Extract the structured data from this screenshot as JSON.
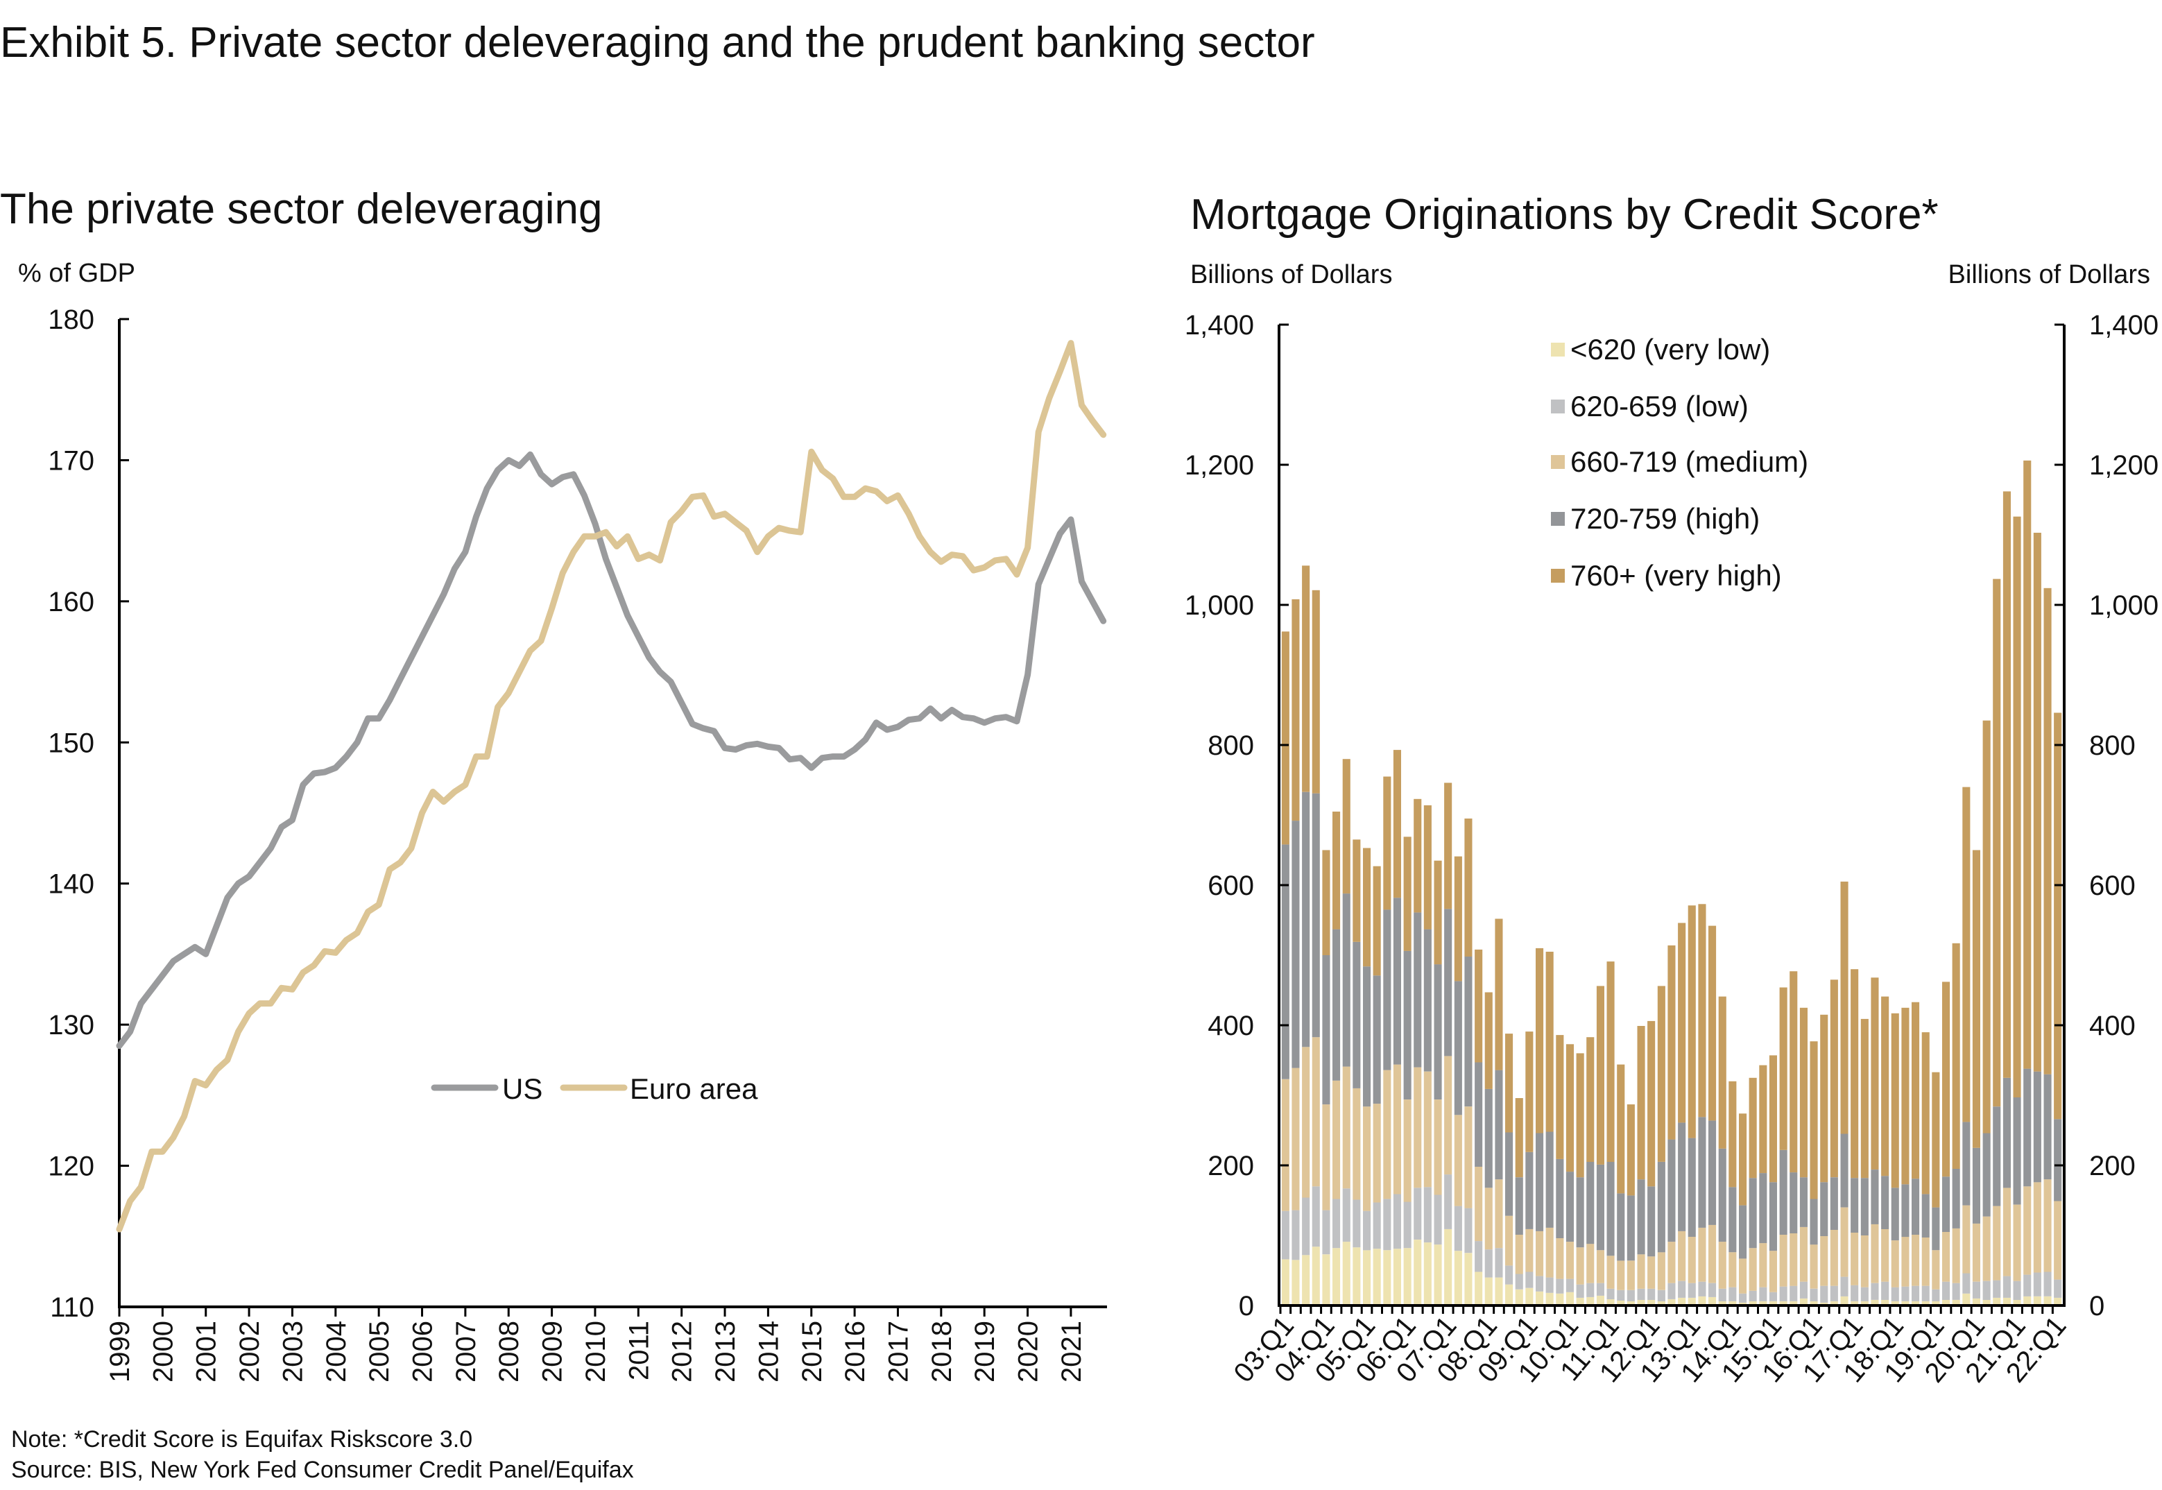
{
  "title": "Exhibit 5. Private sector deleveraging and the prudent banking sector",
  "note": "Note: *Credit Score is Equifax Riskscore 3.0",
  "source": "Source: BIS, New York Fed Consumer Credit Panel/Equifax",
  "chart_data": [
    {
      "type": "line",
      "title": "The private sector deleveraging",
      "ylabel": "% of GDP",
      "ylim": [
        110,
        180
      ],
      "yticks": [
        "110",
        "120",
        "130",
        "140",
        "150",
        "160",
        "170",
        "180"
      ],
      "xtick_labels": [
        "1999",
        "2000",
        "2001",
        "2002",
        "2003",
        "2004",
        "2005",
        "2006",
        "2007",
        "2008",
        "2009",
        "2010",
        "2011",
        "2012",
        "2013",
        "2014",
        "2015",
        "2016",
        "2017",
        "2018",
        "2019",
        "2020",
        "2021"
      ],
      "frequency": "quarterly",
      "x": [
        "1999Q1",
        "1999Q2",
        "1999Q3",
        "1999Q4",
        "2000Q1",
        "2000Q2",
        "2000Q3",
        "2000Q4",
        "2001Q1",
        "2001Q2",
        "2001Q3",
        "2001Q4",
        "2002Q1",
        "2002Q2",
        "2002Q3",
        "2002Q4",
        "2003Q1",
        "2003Q2",
        "2003Q3",
        "2003Q4",
        "2004Q1",
        "2004Q2",
        "2004Q3",
        "2004Q4",
        "2005Q1",
        "2005Q2",
        "2005Q3",
        "2005Q4",
        "2006Q1",
        "2006Q2",
        "2006Q3",
        "2006Q4",
        "2007Q1",
        "2007Q2",
        "2007Q3",
        "2007Q4",
        "2008Q1",
        "2008Q2",
        "2008Q3",
        "2008Q4",
        "2009Q1",
        "2009Q2",
        "2009Q3",
        "2009Q4",
        "2010Q1",
        "2010Q2",
        "2010Q3",
        "2010Q4",
        "2011Q1",
        "2011Q2",
        "2011Q3",
        "2011Q4",
        "2012Q1",
        "2012Q2",
        "2012Q3",
        "2012Q4",
        "2013Q1",
        "2013Q2",
        "2013Q3",
        "2013Q4",
        "2014Q1",
        "2014Q2",
        "2014Q3",
        "2014Q4",
        "2015Q1",
        "2015Q2",
        "2015Q3",
        "2015Q4",
        "2016Q1",
        "2016Q2",
        "2016Q3",
        "2016Q4",
        "2017Q1",
        "2017Q2",
        "2017Q3",
        "2017Q4",
        "2018Q1",
        "2018Q2",
        "2018Q3",
        "2018Q4",
        "2019Q1",
        "2019Q2",
        "2019Q3",
        "2019Q4",
        "2020Q1",
        "2020Q2",
        "2020Q3",
        "2020Q4",
        "2021Q1",
        "2021Q2",
        "2021Q3",
        "2021Q4"
      ],
      "legend_placement": "center",
      "grid": false,
      "series": [
        {
          "name": "US",
          "color": "#9a9b9d",
          "values": [
            128.5,
            129.5,
            131.5,
            132.5,
            133.5,
            134.5,
            135,
            135.5,
            135,
            137,
            139,
            140,
            140.5,
            141.5,
            142.5,
            144,
            144.5,
            147,
            147.8,
            147.9,
            148.2,
            149,
            150,
            151.7,
            151.7,
            153,
            154.5,
            156,
            157.5,
            159,
            160.5,
            162.3,
            163.5,
            166,
            168,
            169.3,
            170,
            169.6,
            170.4,
            169,
            168.3,
            168.8,
            169,
            167.5,
            165.5,
            163,
            161,
            159,
            157.5,
            156,
            155,
            154.3,
            152.8,
            151.3,
            151,
            150.8,
            149.6,
            149.5,
            149.8,
            149.9,
            149.7,
            149.6,
            148.8,
            148.9,
            148.2,
            148.9,
            149,
            149,
            149.5,
            150.2,
            151.4,
            150.9,
            151.1,
            151.6,
            151.7,
            152.4,
            151.7,
            152.3,
            151.8,
            151.7,
            151.4,
            151.7,
            151.8,
            151.5,
            154.8,
            161.2,
            163,
            164.8,
            165.8,
            161.4,
            160,
            158.6
          ]
        },
        {
          "name": "Euro area",
          "color": "#dcc595",
          "values": [
            115.5,
            117.5,
            118.5,
            121,
            121,
            122,
            123.5,
            126,
            125.7,
            126.8,
            127.5,
            129.5,
            130.8,
            131.5,
            131.5,
            132.6,
            132.5,
            133.7,
            134.2,
            135.2,
            135.1,
            136,
            136.5,
            138,
            138.5,
            141,
            141.5,
            142.5,
            145,
            146.5,
            145.8,
            146.5,
            147,
            149,
            149,
            152.5,
            153.5,
            155,
            156.5,
            157.2,
            159.5,
            162,
            163.5,
            164.6,
            164.6,
            164.9,
            163.9,
            164.6,
            163,
            163.3,
            162.9,
            165.6,
            166.4,
            167.4,
            167.5,
            166,
            166.2,
            165.6,
            165,
            163.5,
            164.6,
            165.2,
            165,
            164.9,
            170.6,
            169.3,
            168.7,
            167.4,
            167.4,
            168,
            167.8,
            167.1,
            167.5,
            166.2,
            164.6,
            163.5,
            162.8,
            163.3,
            163.2,
            162.2,
            162.4,
            162.9,
            163,
            161.9,
            163.8,
            172,
            174.4,
            176.3,
            178.3,
            173.9,
            172.8,
            171.8
          ]
        }
      ]
    },
    {
      "type": "bar",
      "stacked": true,
      "title": "Mortgage Originations by Credit Score*",
      "ylabel": "Billions of Dollars",
      "ylabel_right": "Billions of Dollars",
      "ylim": [
        0,
        1400
      ],
      "yticks": [
        "0",
        "200",
        "400",
        "600",
        "800",
        "1,000",
        "1,200",
        "1,400"
      ],
      "xtick_labels": [
        "03:Q1",
        "04:Q1",
        "05:Q1",
        "06:Q1",
        "07:Q1",
        "08:Q1",
        "09:Q1",
        "10:Q1",
        "11:Q1",
        "12:Q1",
        "13:Q1",
        "14:Q1",
        "15:Q1",
        "16:Q1",
        "17:Q1",
        "18:Q1",
        "19:Q1",
        "20:Q1",
        "21:Q1",
        "22:Q1"
      ],
      "legend_placement": "top-right",
      "categories": [
        "03:Q1",
        "03:Q2",
        "03:Q3",
        "03:Q4",
        "04:Q1",
        "04:Q2",
        "04:Q3",
        "04:Q4",
        "05:Q1",
        "05:Q2",
        "05:Q3",
        "05:Q4",
        "06:Q1",
        "06:Q2",
        "06:Q3",
        "06:Q4",
        "07:Q1",
        "07:Q2",
        "07:Q3",
        "07:Q4",
        "08:Q1",
        "08:Q2",
        "08:Q3",
        "08:Q4",
        "09:Q1",
        "09:Q2",
        "09:Q3",
        "09:Q4",
        "10:Q1",
        "10:Q2",
        "10:Q3",
        "10:Q4",
        "11:Q1",
        "11:Q2",
        "11:Q3",
        "11:Q4",
        "12:Q1",
        "12:Q2",
        "12:Q3",
        "12:Q4",
        "13:Q1",
        "13:Q2",
        "13:Q3",
        "13:Q4",
        "14:Q1",
        "14:Q2",
        "14:Q3",
        "14:Q4",
        "15:Q1",
        "15:Q2",
        "15:Q3",
        "15:Q4",
        "16:Q1",
        "16:Q2",
        "16:Q3",
        "16:Q4",
        "17:Q1",
        "17:Q2",
        "17:Q3",
        "17:Q4",
        "18:Q1",
        "18:Q2",
        "18:Q3",
        "18:Q4",
        "19:Q1",
        "19:Q2",
        "19:Q3",
        "19:Q4",
        "20:Q1",
        "20:Q2",
        "20:Q3",
        "20:Q4",
        "21:Q1",
        "21:Q2",
        "21:Q3",
        "21:Q4",
        "22:Q1"
      ],
      "series": [
        {
          "name": "<620 (very low)",
          "color": "#eee3b0",
          "values": [
            66,
            65,
            72,
            84,
            73,
            82,
            91,
            83,
            79,
            81,
            79,
            81,
            82,
            94,
            90,
            87,
            109,
            78,
            75,
            48,
            40,
            40,
            30,
            23,
            25,
            20,
            18,
            17,
            19,
            11,
            12,
            14,
            9,
            7,
            6,
            8,
            8,
            6,
            9,
            11,
            11,
            13,
            12,
            6,
            6,
            4,
            6,
            6,
            6,
            6,
            6,
            10,
            6,
            4,
            6,
            13,
            6,
            6,
            8,
            8,
            6,
            6,
            6,
            6,
            6,
            8,
            8,
            17,
            10,
            8,
            11,
            11,
            8,
            13,
            13,
            13,
            11
          ]
        },
        {
          "name": "620-659 (low)",
          "color": "#c0c1c3",
          "values": [
            69,
            71,
            82,
            86,
            63,
            70,
            76,
            68,
            56,
            66,
            73,
            78,
            66,
            74,
            79,
            71,
            78,
            64,
            64,
            44,
            40,
            42,
            27,
            22,
            23,
            22,
            22,
            21,
            19,
            19,
            20,
            18,
            15,
            15,
            16,
            16,
            16,
            16,
            23,
            24,
            21,
            21,
            20,
            18,
            20,
            13,
            15,
            20,
            13,
            21,
            22,
            24,
            18,
            24,
            22,
            28,
            23,
            20,
            24,
            26,
            20,
            21,
            22,
            22,
            17,
            26,
            24,
            29,
            24,
            27,
            25,
            31,
            27,
            31,
            34,
            35,
            26
          ]
        },
        {
          "name": "660-719 (medium)",
          "color": "#dfc598",
          "values": [
            188,
            203,
            215,
            213,
            151,
            169,
            174,
            159,
            149,
            141,
            184,
            185,
            146,
            172,
            165,
            136,
            169,
            130,
            145,
            106,
            88,
            98,
            71,
            56,
            61,
            64,
            71,
            58,
            53,
            53,
            56,
            47,
            47,
            42,
            42,
            49,
            46,
            54,
            59,
            71,
            66,
            77,
            83,
            67,
            50,
            50,
            61,
            63,
            59,
            74,
            75,
            78,
            63,
            71,
            80,
            99,
            75,
            74,
            84,
            75,
            67,
            71,
            73,
            69,
            56,
            71,
            78,
            97,
            83,
            92,
            106,
            126,
            109,
            126,
            129,
            132,
            112
          ]
        },
        {
          "name": "720-759 (high)",
          "color": "#939598",
          "values": [
            335,
            353,
            364,
            348,
            213,
            216,
            247,
            209,
            200,
            183,
            229,
            238,
            212,
            221,
            203,
            193,
            210,
            191,
            214,
            149,
            141,
            156,
            119,
            82,
            110,
            140,
            137,
            113,
            100,
            100,
            117,
            122,
            134,
            96,
            93,
            107,
            100,
            129,
            146,
            155,
            141,
            158,
            149,
            133,
            93,
            76,
            100,
            100,
            98,
            121,
            87,
            71,
            65,
            77,
            75,
            105,
            78,
            82,
            78,
            76,
            75,
            75,
            80,
            62,
            61,
            79,
            85,
            119,
            108,
            119,
            142,
            157,
            153,
            168,
            158,
            150,
            117
          ]
        },
        {
          "name": "760+ (very high)",
          "color": "#c59d5f",
          "values": [
            304,
            316,
            323,
            290,
            150,
            168,
            192,
            146,
            169,
            156,
            190,
            211,
            163,
            162,
            177,
            148,
            180,
            178,
            197,
            161,
            138,
            216,
            141,
            113,
            172,
            264,
            257,
            177,
            182,
            177,
            178,
            255,
            286,
            184,
            130,
            219,
            236,
            251,
            277,
            285,
            332,
            304,
            278,
            217,
            151,
            131,
            143,
            154,
            181,
            232,
            287,
            242,
            225,
            239,
            282,
            360,
            298,
            227,
            274,
            256,
            249,
            252,
            252,
            231,
            193,
            278,
            322,
            478,
            425,
            589,
            753,
            837,
            829,
            868,
            769,
            694,
            580
          ]
        }
      ]
    }
  ]
}
